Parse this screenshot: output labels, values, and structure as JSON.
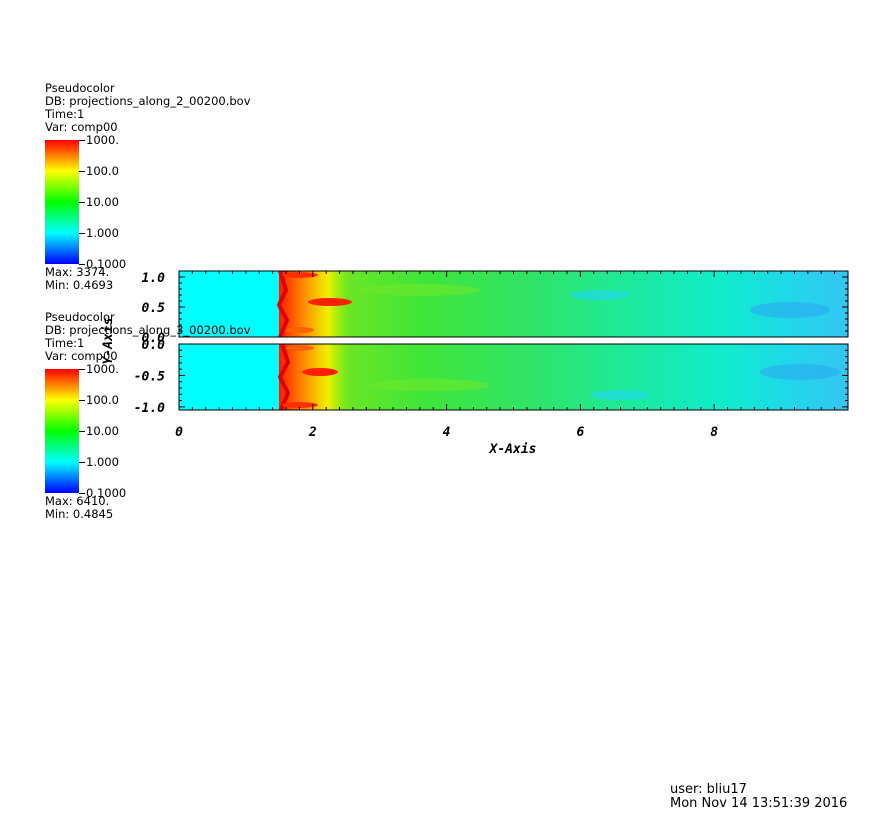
{
  "chart_data": [
    {
      "type": "heatmap",
      "panel": "upper",
      "plot_type": "Pseudocolor",
      "db": "DB: projections_along_2_00200.bov",
      "time": "Time:1",
      "var": "Var: comp00",
      "colorbar": {
        "scale": "log",
        "ticks": [
          "1000.",
          "100.0",
          "10.00",
          "1.000",
          "0.1000"
        ]
      },
      "max": "Max: 3374.",
      "min": "Min: 0.4693",
      "yticks": [
        "1.0",
        "0.5",
        "0.0"
      ],
      "yrange": [
        0.0,
        1.1
      ]
    },
    {
      "type": "heatmap",
      "panel": "lower",
      "plot_type": "Pseudocolor",
      "db": "DB: projections_along_3_00200.bov",
      "time": "Time:1",
      "var": "Var: comp00",
      "colorbar": {
        "scale": "log",
        "ticks": [
          "1000.",
          "100.0",
          "10.00",
          "1.000",
          "0.1000"
        ]
      },
      "max": "Max: 6410.",
      "min": "Min: 0.4845",
      "yticks": [
        "0.0",
        "-0.5",
        "-1.0"
      ],
      "yrange": [
        -1.05,
        0.0
      ]
    }
  ],
  "axes": {
    "xlabel": "X-Axis",
    "ylabel": "Y-Axis",
    "xticks": [
      "0",
      "2",
      "4",
      "6",
      "8"
    ],
    "xrange": [
      0,
      10
    ]
  },
  "footer": {
    "user": "user: bliu17",
    "date": "Mon Nov 14 13:51:39 2016"
  },
  "colors": {
    "background": "#00ffff",
    "front": "#ff2a00",
    "bulk": "#33ee33"
  }
}
